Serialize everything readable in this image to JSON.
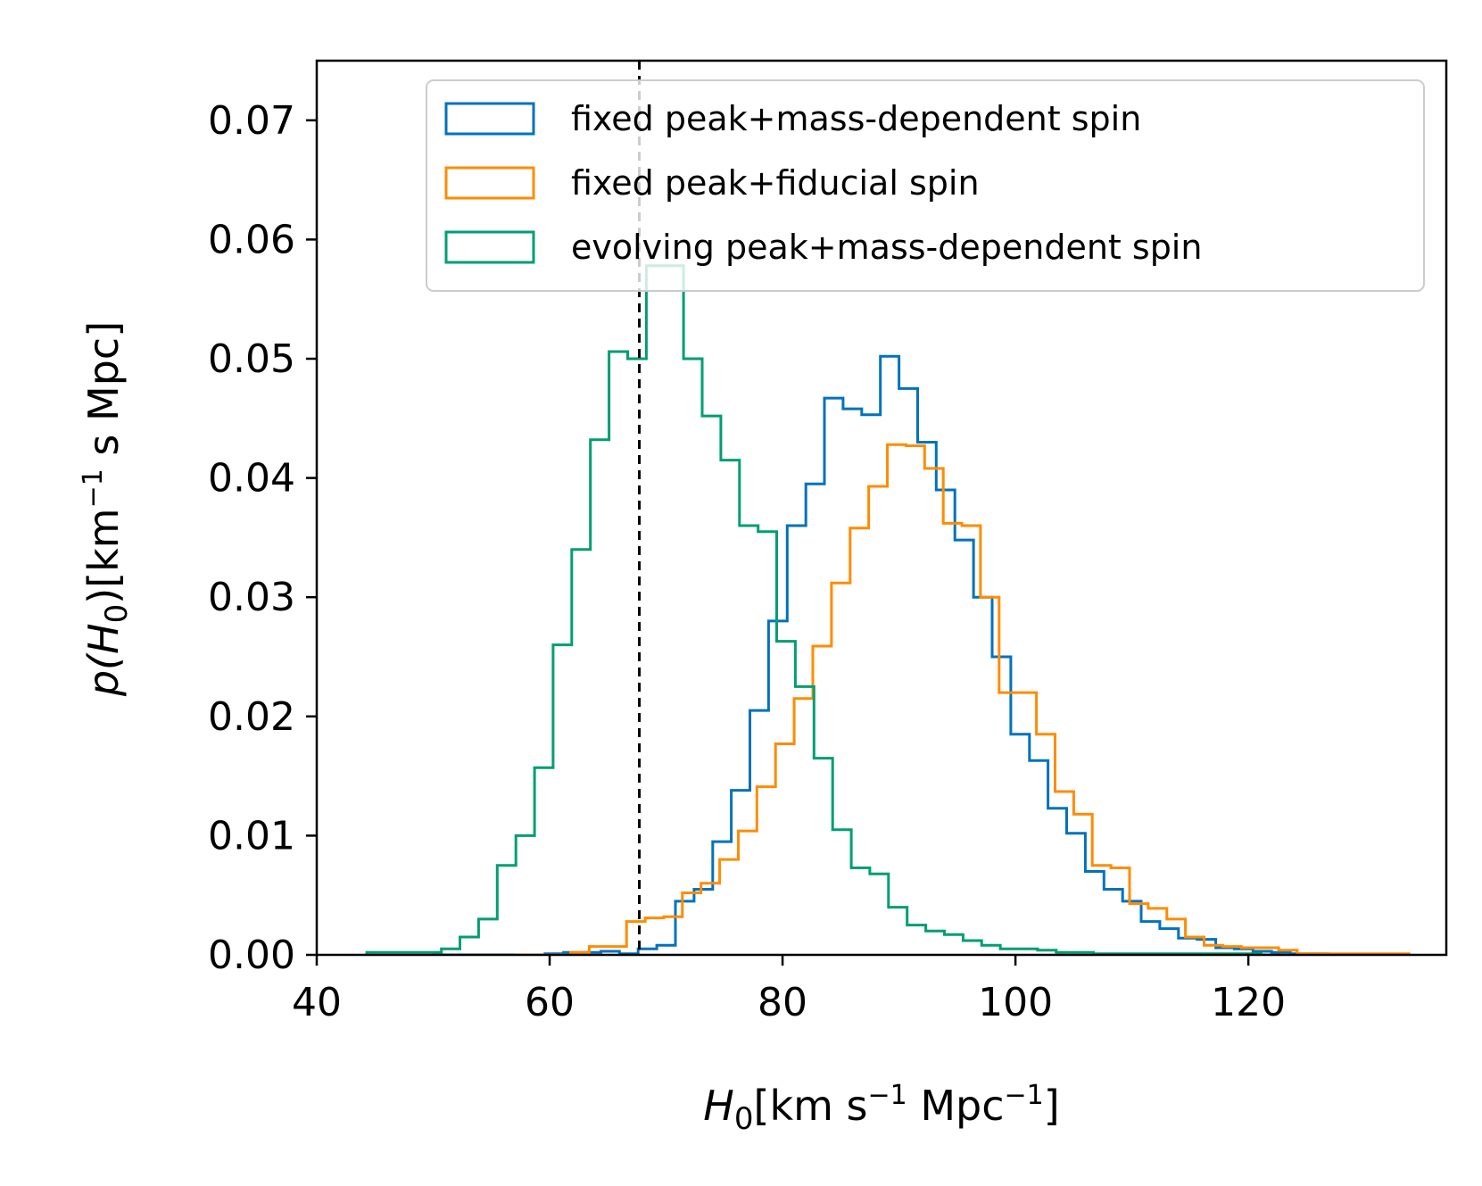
{
  "chart_data": {
    "type": "histogram",
    "xlabel": {
      "symbol": "H",
      "sub": "0",
      "unit_a": "[km s",
      "sup_a": "−1",
      "unit_b": " Mpc",
      "sup_b": "−1",
      "unit_c": "]"
    },
    "ylabel": {
      "pre": "p(",
      "symbol": "H",
      "sub": "0",
      "mid": ")[km",
      "sup": "−1",
      "post": " s Mpc]"
    },
    "xlim": [
      40,
      137
    ],
    "ylim": [
      0,
      0.075
    ],
    "xticks": [
      40,
      60,
      80,
      100,
      120
    ],
    "yticks": [
      0.0,
      0.01,
      0.02,
      0.03,
      0.04,
      0.05,
      0.06,
      0.07
    ],
    "ytick_labels": [
      "0.00",
      "0.01",
      "0.02",
      "0.03",
      "0.04",
      "0.05",
      "0.06",
      "0.07"
    ],
    "reference_line": {
      "x": 67.7,
      "style": "dashed",
      "color": "#000000"
    },
    "legend": {
      "placement": "upper right"
    },
    "series": [
      {
        "name": "fixed peak+mass-dependent spin",
        "color": "#0072BD",
        "x_start": 50.0,
        "bin_width": 1.6,
        "values": [
          0,
          0,
          0,
          0,
          0,
          0,
          0.0001,
          0.0002,
          0.0002,
          0.0003,
          0.0001,
          0.0005,
          0.0008,
          0.0045,
          0.0055,
          0.0095,
          0.0138,
          0.0205,
          0.028,
          0.036,
          0.0395,
          0.0467,
          0.0458,
          0.0453,
          0.0502,
          0.0475,
          0.043,
          0.039,
          0.0348,
          0.03,
          0.025,
          0.0185,
          0.0163,
          0.0123,
          0.0102,
          0.007,
          0.0055,
          0.0045,
          0.0028,
          0.0022,
          0.0014,
          0.0013,
          0.0006,
          0.0005,
          0.0003,
          0.0002,
          0.0001,
          0.0001,
          0
        ]
      },
      {
        "name": "fixed peak+fiducial spin",
        "color": "#FF8C00",
        "x_start": 57.0,
        "bin_width": 1.6,
        "values": [
          0,
          0,
          0,
          0.0002,
          0.0007,
          0.0007,
          0.0028,
          0.0031,
          0.0032,
          0.0052,
          0.006,
          0.008,
          0.0104,
          0.0141,
          0.0177,
          0.0215,
          0.0259,
          0.0312,
          0.0358,
          0.0393,
          0.0428,
          0.0427,
          0.0408,
          0.0362,
          0.036,
          0.03,
          0.022,
          0.022,
          0.0185,
          0.0137,
          0.0118,
          0.0075,
          0.0073,
          0.0043,
          0.0039,
          0.003,
          0.0015,
          0.0008,
          0.0007,
          0.0006,
          0.0006,
          0.0004,
          0.0001,
          0.0001,
          0.0001,
          0.0001,
          0.0001,
          0.0001
        ]
      },
      {
        "name": "evolving peak+mass-dependent spin",
        "color": "#009E73",
        "x_start": 44.3,
        "bin_width": 1.6,
        "values": [
          0.0002,
          0.0002,
          0.0002,
          0.0002,
          0.0005,
          0.0015,
          0.003,
          0.0075,
          0.01,
          0.0157,
          0.026,
          0.034,
          0.0432,
          0.0506,
          0.05,
          0.0578,
          0.0578,
          0.05,
          0.0452,
          0.0415,
          0.036,
          0.0355,
          0.0263,
          0.0225,
          0.0165,
          0.0105,
          0.0073,
          0.0068,
          0.004,
          0.0025,
          0.002,
          0.0017,
          0.0012,
          0.0008,
          0.0005,
          0.0005,
          0.0004,
          0.0002,
          0.0002,
          0.0001,
          0.0001,
          0.0001,
          0.0001,
          0.0001,
          0.0001,
          0.0001,
          0.0001,
          0.0001,
          0
        ]
      }
    ]
  }
}
